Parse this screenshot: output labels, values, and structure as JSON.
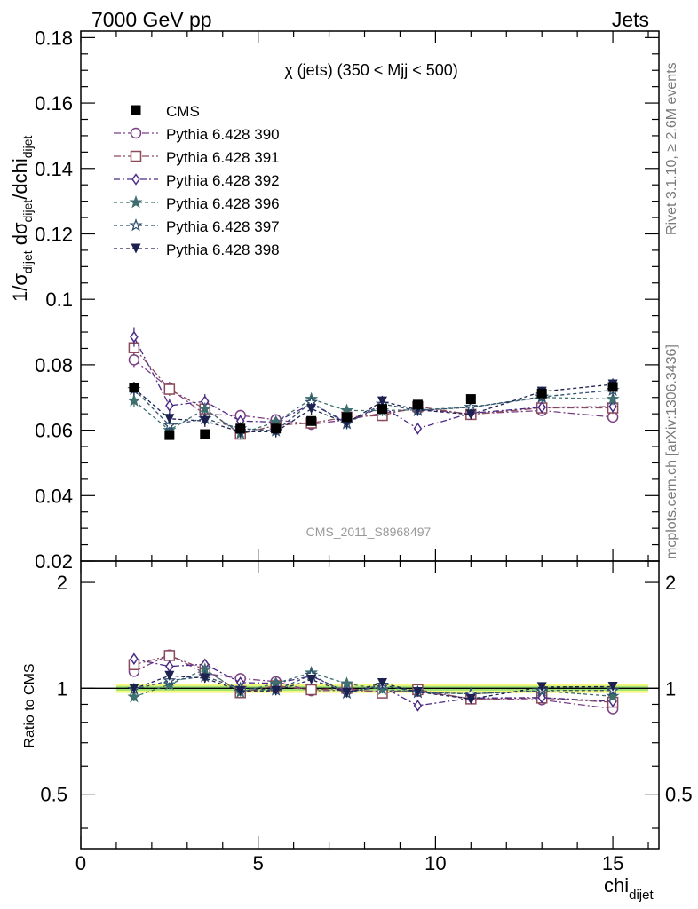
{
  "header": {
    "left": "7000 GeV pp",
    "right": "Jets"
  },
  "side_labels": {
    "rivet": "Rivet 3.1.10, ≥ 2.6M events",
    "mcplots": "mcplots.cern.ch [arXiv:1306.3436]"
  },
  "chart_data": {
    "type": "scatter",
    "title": "χ (jets) (350 < Mjj <  500)",
    "watermark": "CMS_2011_S8968497",
    "xlabel": "chi",
    "xlabel_sub": "dijet",
    "ylabel": "1/σ dσ/dchi",
    "ylabel_parts": [
      "1/σ",
      "dijet",
      " dσ",
      "dijet",
      "/dchi",
      "dijet"
    ],
    "ratio_ylabel": "Ratio to CMS",
    "xlim": [
      0,
      16.3
    ],
    "ylim": [
      0.02,
      0.182
    ],
    "ratio_ylim": [
      0.35,
      2.3
    ],
    "ratio_scale": "log",
    "x_ticks": [
      0,
      5,
      10,
      15
    ],
    "y_ticks": [
      0.02,
      0.04,
      0.06,
      0.08,
      0.1,
      0.12,
      0.14,
      0.16,
      0.18
    ],
    "y_tick_labels": [
      "0.02",
      "0.04",
      "0.06",
      "0.08",
      "0.1",
      "0.12",
      "0.14",
      "0.16",
      "0.18"
    ],
    "ratio_ticks": [
      0.5,
      1,
      2
    ],
    "ratio_tick_labels": [
      "0.5",
      "1",
      "2"
    ],
    "legend_position": "top-left",
    "x": [
      1.5,
      2.5,
      3.5,
      4.5,
      5.5,
      6.5,
      7.5,
      8.5,
      9.5,
      11.0,
      13.0,
      15.0
    ],
    "data": {
      "name": "CMS",
      "values": [
        0.073,
        0.0585,
        0.0588,
        0.0605,
        0.0605,
        0.0628,
        0.064,
        0.0665,
        0.0678,
        0.0695,
        0.0712,
        0.0732
      ],
      "errors": [
        0.0015,
        0.001,
        0.001,
        0.001,
        0.001,
        0.001,
        0.001,
        0.001,
        0.001,
        0.001,
        0.001,
        0.0015
      ],
      "color": "#000000"
    },
    "series": [
      {
        "name": "Pythia 6.428 390",
        "marker": "circle-open",
        "dash": "8,3,2,3",
        "color": "#7b3f86",
        "values": [
          0.0815,
          0.0728,
          0.0648,
          0.0645,
          0.0632,
          0.0618,
          0.0632,
          0.0652,
          0.0665,
          0.065,
          0.066,
          0.064
        ],
        "errors": [
          0.0022,
          0.002,
          0.0018,
          0.0017,
          0.0017,
          0.0017,
          0.0017,
          0.0017,
          0.0017,
          0.0015,
          0.0015,
          0.0018
        ]
      },
      {
        "name": "Pythia 6.428 391",
        "marker": "square-open",
        "dash": "8,3,2,3",
        "color": "#8b4a5a",
        "values": [
          0.0852,
          0.0725,
          0.0665,
          0.0588,
          0.0615,
          0.0622,
          0.064,
          0.0645,
          0.0672,
          0.0648,
          0.0668,
          0.0668
        ],
        "errors": [
          0.0022,
          0.002,
          0.0018,
          0.0017,
          0.0017,
          0.0017,
          0.0017,
          0.0017,
          0.0017,
          0.0015,
          0.0015,
          0.0018
        ]
      },
      {
        "name": "Pythia 6.428 392",
        "marker": "diamond-open",
        "dash": "7,3,2,3",
        "color": "#4b2a86",
        "values": [
          0.0885,
          0.0675,
          0.0688,
          0.0628,
          0.0625,
          0.068,
          0.0625,
          0.0672,
          0.0605,
          0.0652,
          0.067,
          0.0672
        ],
        "errors": [
          0.003,
          0.0022,
          0.0022,
          0.0018,
          0.0018,
          0.0018,
          0.0018,
          0.0018,
          0.0018,
          0.0016,
          0.0016,
          0.0018
        ]
      },
      {
        "name": "Pythia 6.428 396",
        "marker": "star-filled",
        "dash": "4,3",
        "color": "#3f6f6e",
        "values": [
          0.069,
          0.06,
          0.0665,
          0.059,
          0.0625,
          0.0695,
          0.066,
          0.066,
          0.0662,
          0.067,
          0.07,
          0.0695
        ],
        "errors": [
          0.002,
          0.0018,
          0.0018,
          0.0017,
          0.0017,
          0.0018,
          0.0017,
          0.0017,
          0.0017,
          0.0015,
          0.0015,
          0.0018
        ]
      },
      {
        "name": "Pythia 6.428 397",
        "marker": "star-open",
        "dash": "4,3",
        "color": "#2f4f6e",
        "values": [
          0.0725,
          0.0615,
          0.0635,
          0.0605,
          0.0598,
          0.0685,
          0.062,
          0.068,
          0.066,
          0.067,
          0.0702,
          0.0722
        ],
        "errors": [
          0.002,
          0.0018,
          0.0018,
          0.0017,
          0.0017,
          0.0018,
          0.0017,
          0.0017,
          0.0017,
          0.0015,
          0.0015,
          0.0018
        ]
      },
      {
        "name": "Pythia 6.428 398",
        "marker": "triangle-down",
        "dash": "4,3",
        "color": "#1c2150",
        "values": [
          0.0728,
          0.0635,
          0.0628,
          0.0595,
          0.0595,
          0.0665,
          0.0622,
          0.0688,
          0.0662,
          0.0648,
          0.0718,
          0.074
        ],
        "errors": [
          0.002,
          0.0018,
          0.0018,
          0.0017,
          0.0017,
          0.0018,
          0.0017,
          0.0017,
          0.0017,
          0.0015,
          0.0015,
          0.0018
        ]
      }
    ]
  }
}
